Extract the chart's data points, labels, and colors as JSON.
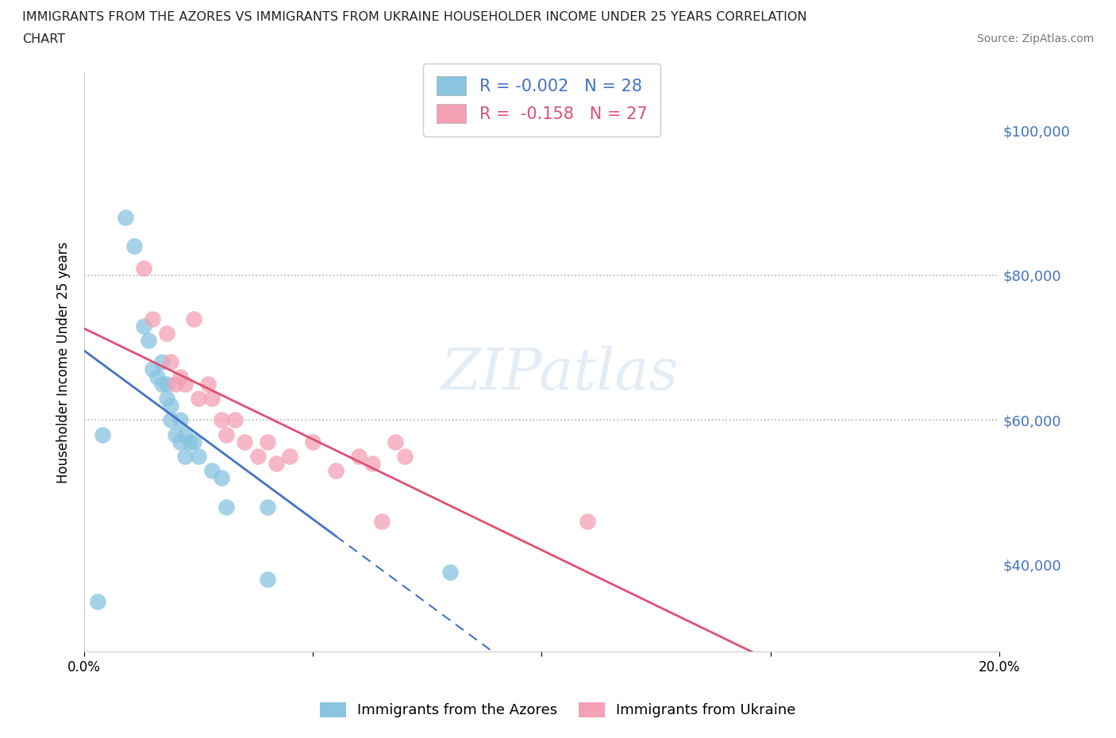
{
  "title_line1": "IMMIGRANTS FROM THE AZORES VS IMMIGRANTS FROM UKRAINE HOUSEHOLDER INCOME UNDER 25 YEARS CORRELATION",
  "title_line2": "CHART",
  "source": "Source: ZipAtlas.com",
  "ylabel": "Householder Income Under 25 years",
  "xlim": [
    0.0,
    0.2
  ],
  "ylim": [
    28000,
    108000
  ],
  "yticks": [
    40000,
    60000,
    80000,
    100000
  ],
  "ytick_labels": [
    "$40,000",
    "$60,000",
    "$80,000",
    "$100,000"
  ],
  "xticks": [
    0.0,
    0.05,
    0.1,
    0.15,
    0.2
  ],
  "watermark": "ZIPatlas",
  "color_azores": "#89c4e1",
  "color_ukraine": "#f4a0b5",
  "color_line_azores": "#4472c4",
  "color_line_ukraine": "#e05070",
  "color_ytick_labels": "#4472c4",
  "azores_x": [
    0.004,
    0.009,
    0.011,
    0.013,
    0.014,
    0.015,
    0.016,
    0.017,
    0.017,
    0.018,
    0.018,
    0.019,
    0.019,
    0.02,
    0.021,
    0.021,
    0.022,
    0.022,
    0.023,
    0.024,
    0.025,
    0.028,
    0.03,
    0.031,
    0.04,
    0.04,
    0.08,
    0.003
  ],
  "azores_y": [
    58000,
    88000,
    84000,
    73000,
    71000,
    67000,
    66000,
    68000,
    65000,
    65000,
    63000,
    62000,
    60000,
    58000,
    60000,
    57000,
    55000,
    58000,
    57000,
    57000,
    55000,
    53000,
    52000,
    48000,
    48000,
    38000,
    39000,
    35000
  ],
  "ukraine_x": [
    0.013,
    0.015,
    0.018,
    0.019,
    0.021,
    0.022,
    0.024,
    0.025,
    0.027,
    0.028,
    0.03,
    0.031,
    0.033,
    0.035,
    0.038,
    0.04,
    0.042,
    0.045,
    0.05,
    0.055,
    0.06,
    0.063,
    0.065,
    0.068,
    0.07,
    0.11,
    0.02
  ],
  "ukraine_y": [
    81000,
    74000,
    72000,
    68000,
    66000,
    65000,
    74000,
    63000,
    65000,
    63000,
    60000,
    58000,
    60000,
    57000,
    55000,
    57000,
    54000,
    55000,
    57000,
    53000,
    55000,
    54000,
    46000,
    57000,
    55000,
    46000,
    65000
  ],
  "azores_trend": [
    -50000,
    62000
  ],
  "ukraine_trend": [
    -130000,
    65000
  ]
}
